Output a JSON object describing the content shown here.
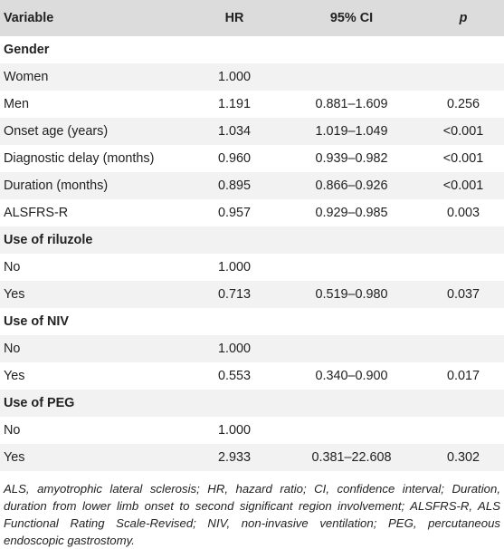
{
  "header": {
    "variable": "Variable",
    "hr": "HR",
    "ci": "95% CI",
    "p": "p"
  },
  "rows": [
    {
      "type": "group",
      "variable": "Gender",
      "hr": "",
      "ci": "",
      "p": ""
    },
    {
      "type": "data",
      "variable": "Women",
      "hr": "1.000",
      "ci": "",
      "p": ""
    },
    {
      "type": "data",
      "variable": "Men",
      "hr": "1.191",
      "ci": "0.881–1.609",
      "p": "0.256"
    },
    {
      "type": "data",
      "variable": "Onset age (years)",
      "hr": "1.034",
      "ci": "1.019–1.049",
      "p": "<0.001"
    },
    {
      "type": "data",
      "variable": "Diagnostic delay (months)",
      "hr": "0.960",
      "ci": "0.939–0.982",
      "p": "<0.001"
    },
    {
      "type": "data",
      "variable": "Duration (months)",
      "hr": "0.895",
      "ci": "0.866–0.926",
      "p": "<0.001"
    },
    {
      "type": "data",
      "variable": "ALSFRS-R",
      "hr": "0.957",
      "ci": "0.929–0.985",
      "p": "0.003"
    },
    {
      "type": "group",
      "variable": "Use of riluzole",
      "hr": "",
      "ci": "",
      "p": ""
    },
    {
      "type": "data",
      "variable": "No",
      "hr": "1.000",
      "ci": "",
      "p": ""
    },
    {
      "type": "data",
      "variable": "Yes",
      "hr": "0.713",
      "ci": "0.519–0.980",
      "p": "0.037"
    },
    {
      "type": "group",
      "variable": "Use of NIV",
      "hr": "",
      "ci": "",
      "p": ""
    },
    {
      "type": "data",
      "variable": "No",
      "hr": "1.000",
      "ci": "",
      "p": ""
    },
    {
      "type": "data",
      "variable": "Yes",
      "hr": "0.553",
      "ci": "0.340–0.900",
      "p": "0.017"
    },
    {
      "type": "group",
      "variable": "Use of PEG",
      "hr": "",
      "ci": "",
      "p": ""
    },
    {
      "type": "data",
      "variable": "No",
      "hr": "1.000",
      "ci": "",
      "p": ""
    },
    {
      "type": "data",
      "variable": "Yes",
      "hr": "2.933",
      "ci": "0.381–22.608",
      "p": "0.302"
    }
  ],
  "footnote": "ALS, amyotrophic lateral sclerosis; HR, hazard ratio; CI, confidence interval; Duration, duration from lower limb onset to second significant region involvement; ALSFRS-R, ALS Functional Rating Scale-Revised; NIV, non-invasive ventilation; PEG, percutaneous endoscopic gastrostomy."
}
